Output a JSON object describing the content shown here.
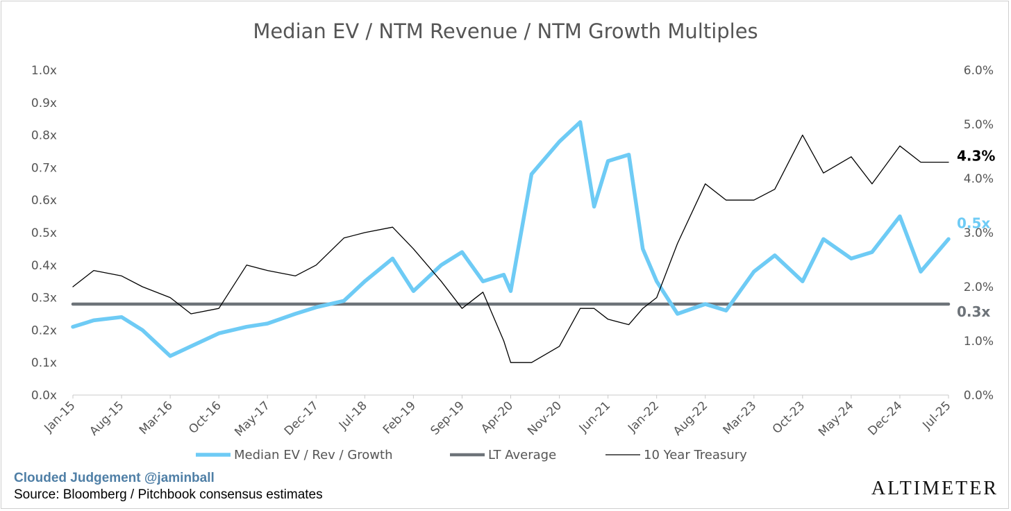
{
  "chart_data": {
    "type": "line",
    "title": "Median EV / NTM Revenue / NTM Growth Multiples",
    "x_ticks": [
      "Jan-15",
      "Aug-15",
      "Mar-16",
      "Oct-16",
      "May-17",
      "Dec-17",
      "Jul-18",
      "Feb-19",
      "Sep-19",
      "Apr-20",
      "Nov-20",
      "Jun-21",
      "Jan-22",
      "Aug-22",
      "Mar-23",
      "Oct-23",
      "May-24",
      "Dec-24",
      "Jul-25"
    ],
    "x_range": [
      "2015-01",
      "2025-07"
    ],
    "y_left": {
      "ylim": [
        0,
        1.0
      ],
      "ticks": [
        "0.0x",
        "0.1x",
        "0.2x",
        "0.3x",
        "0.4x",
        "0.5x",
        "0.6x",
        "0.7x",
        "0.8x",
        "0.9x",
        "1.0x"
      ]
    },
    "y_right": {
      "ylim": [
        0,
        6.0
      ],
      "ticks": [
        "0.0%",
        "1.0%",
        "2.0%",
        "3.0%",
        "4.0%",
        "5.0%",
        "6.0%"
      ]
    },
    "x": [
      "2015-01",
      "2015-04",
      "2015-08",
      "2015-11",
      "2016-03",
      "2016-06",
      "2016-10",
      "2017-02",
      "2017-05",
      "2017-09",
      "2017-12",
      "2018-04",
      "2018-07",
      "2018-11",
      "2019-02",
      "2019-06",
      "2019-09",
      "2019-12",
      "2020-03",
      "2020-04",
      "2020-07",
      "2020-11",
      "2021-02",
      "2021-04",
      "2021-06",
      "2021-09",
      "2021-11",
      "2022-01",
      "2022-04",
      "2022-08",
      "2022-11",
      "2023-03",
      "2023-06",
      "2023-10",
      "2024-01",
      "2024-05",
      "2024-08",
      "2024-12",
      "2025-03",
      "2025-07"
    ],
    "series": [
      {
        "name": "Median EV / Rev / Growth",
        "axis": "left",
        "color": "#6ecbf5",
        "end_label": "0.5x",
        "values": [
          0.21,
          0.23,
          0.24,
          0.2,
          0.12,
          0.15,
          0.19,
          0.21,
          0.22,
          0.25,
          0.27,
          0.29,
          0.35,
          0.42,
          0.32,
          0.4,
          0.44,
          0.35,
          0.37,
          0.32,
          0.68,
          0.78,
          0.84,
          0.58,
          0.72,
          0.74,
          0.45,
          0.35,
          0.25,
          0.28,
          0.26,
          0.38,
          0.43,
          0.35,
          0.48,
          0.42,
          0.44,
          0.55,
          0.38,
          0.48
        ]
      },
      {
        "name": "10 Year Treasury",
        "axis": "right",
        "color": "#000000",
        "end_label": "4.3%",
        "values": [
          2.0,
          2.3,
          2.2,
          2.0,
          1.8,
          1.5,
          1.6,
          2.4,
          2.3,
          2.2,
          2.4,
          2.9,
          3.0,
          3.1,
          2.7,
          2.1,
          1.6,
          1.9,
          1.0,
          0.6,
          0.6,
          0.9,
          1.6,
          1.6,
          1.4,
          1.3,
          1.6,
          1.8,
          2.8,
          3.9,
          3.6,
          3.6,
          3.8,
          4.8,
          4.1,
          4.4,
          3.9,
          4.6,
          4.3,
          4.3
        ]
      },
      {
        "name": "LT Average",
        "axis": "left",
        "color": "#6d7379",
        "end_label": "0.3x",
        "values": [
          0.28,
          0.28,
          0.28,
          0.28,
          0.28,
          0.28,
          0.28,
          0.28,
          0.28,
          0.28,
          0.28,
          0.28,
          0.28,
          0.28,
          0.28,
          0.28,
          0.28,
          0.28,
          0.28,
          0.28,
          0.28,
          0.28,
          0.28,
          0.28,
          0.28,
          0.28,
          0.28,
          0.28,
          0.28,
          0.28,
          0.28,
          0.28,
          0.28,
          0.28,
          0.28,
          0.28,
          0.28,
          0.28,
          0.28,
          0.28
        ]
      }
    ],
    "legend": {
      "placement": "bottom",
      "items": [
        "Median EV / Rev / Growth",
        "LT Average",
        "10 Year Treasury"
      ]
    },
    "grid": false
  },
  "footer": {
    "brand": "Clouded Judgement @jaminball",
    "source": "Source: Bloomberg / Pitchbook consensus estimates",
    "logo": "ALTIMETER"
  }
}
